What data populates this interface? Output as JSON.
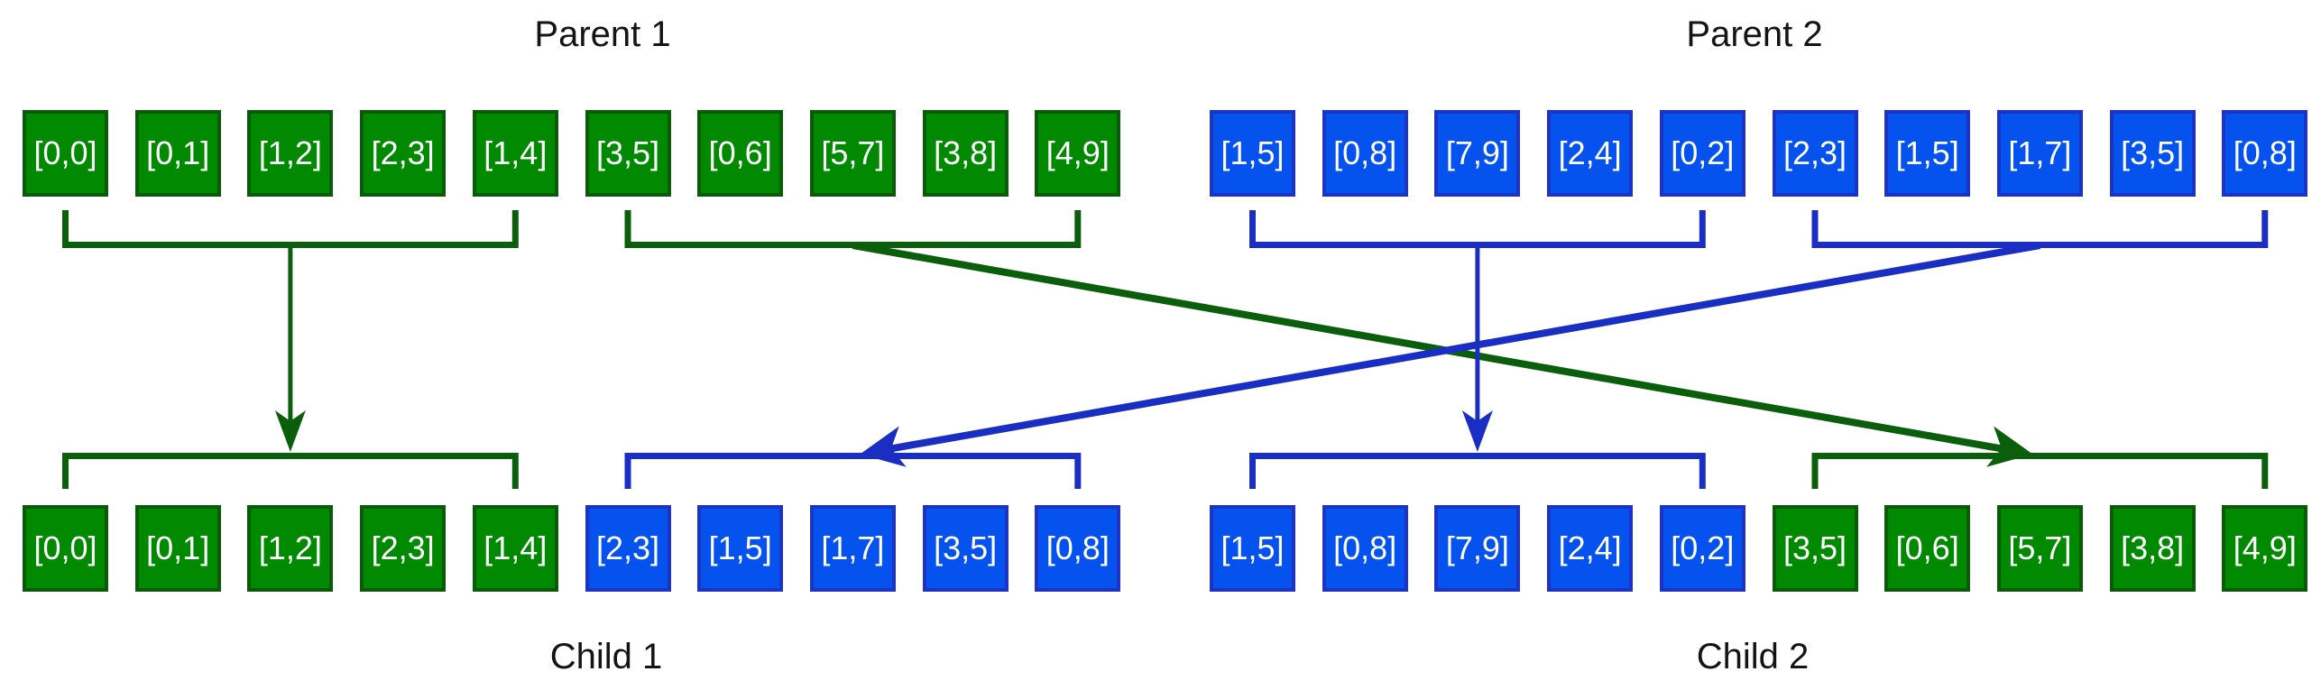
{
  "figure": {
    "type": "genetic-algorithm-single-point-crossover",
    "background": "#ffffff"
  },
  "colors": {
    "green_fill": "#018901",
    "green_border": "#0a5a0a",
    "green_line": "#0b5e0b",
    "blue_fill": "#0652ee",
    "blue_border": "#1c33c4",
    "blue_line": "#1a2ec4",
    "gene_text": "#ffffff",
    "label_text": "#141414"
  },
  "diagram": {
    "parents": [
      {
        "id": "parent1",
        "label": "Parent 1",
        "segments": [
          {
            "color": "green",
            "genes": [
              "[0,0]",
              "[0,1]",
              "[1,2]",
              "[2,3]",
              "[1,4]"
            ]
          },
          {
            "color": "green",
            "genes": [
              "[3,5]",
              "[0,6]",
              "[5,7]",
              "[3,8]",
              "[4,9]"
            ]
          }
        ]
      },
      {
        "id": "parent2",
        "label": "Parent 2",
        "segments": [
          {
            "color": "blue",
            "genes": [
              "[1,5]",
              "[0,8]",
              "[7,9]",
              "[2,4]",
              "[0,2]"
            ]
          },
          {
            "color": "blue",
            "genes": [
              "[2,3]",
              "[1,5]",
              "[1,7]",
              "[3,5]",
              "[0,8]"
            ]
          }
        ]
      }
    ],
    "children": [
      {
        "id": "child1",
        "label": "Child 1",
        "segments": [
          {
            "color": "green",
            "genes": [
              "[0,0]",
              "[0,1]",
              "[1,2]",
              "[2,3]",
              "[1,4]"
            ]
          },
          {
            "color": "blue",
            "genes": [
              "[2,3]",
              "[1,5]",
              "[1,7]",
              "[3,5]",
              "[0,8]"
            ]
          }
        ]
      },
      {
        "id": "child2",
        "label": "Child 2",
        "segments": [
          {
            "color": "blue",
            "genes": [
              "[1,5]",
              "[0,8]",
              "[7,9]",
              "[2,4]",
              "[0,2]"
            ]
          },
          {
            "color": "green",
            "genes": [
              "[3,5]",
              "[0,6]",
              "[5,7]",
              "[3,8]",
              "[4,9]"
            ]
          }
        ]
      }
    ],
    "connections": [
      {
        "from": "parent1.segment1",
        "to": "child1.segment1",
        "color": "green",
        "shape": "vertical-arrow"
      },
      {
        "from": "parent1.segment2",
        "to": "child2.segment2",
        "color": "green",
        "shape": "diagonal-arrow"
      },
      {
        "from": "parent2.segment1",
        "to": "child2.segment1",
        "color": "blue",
        "shape": "vertical-arrow"
      },
      {
        "from": "parent2.segment2",
        "to": "child1.segment2",
        "color": "blue",
        "shape": "diagonal-arrow"
      }
    ]
  }
}
